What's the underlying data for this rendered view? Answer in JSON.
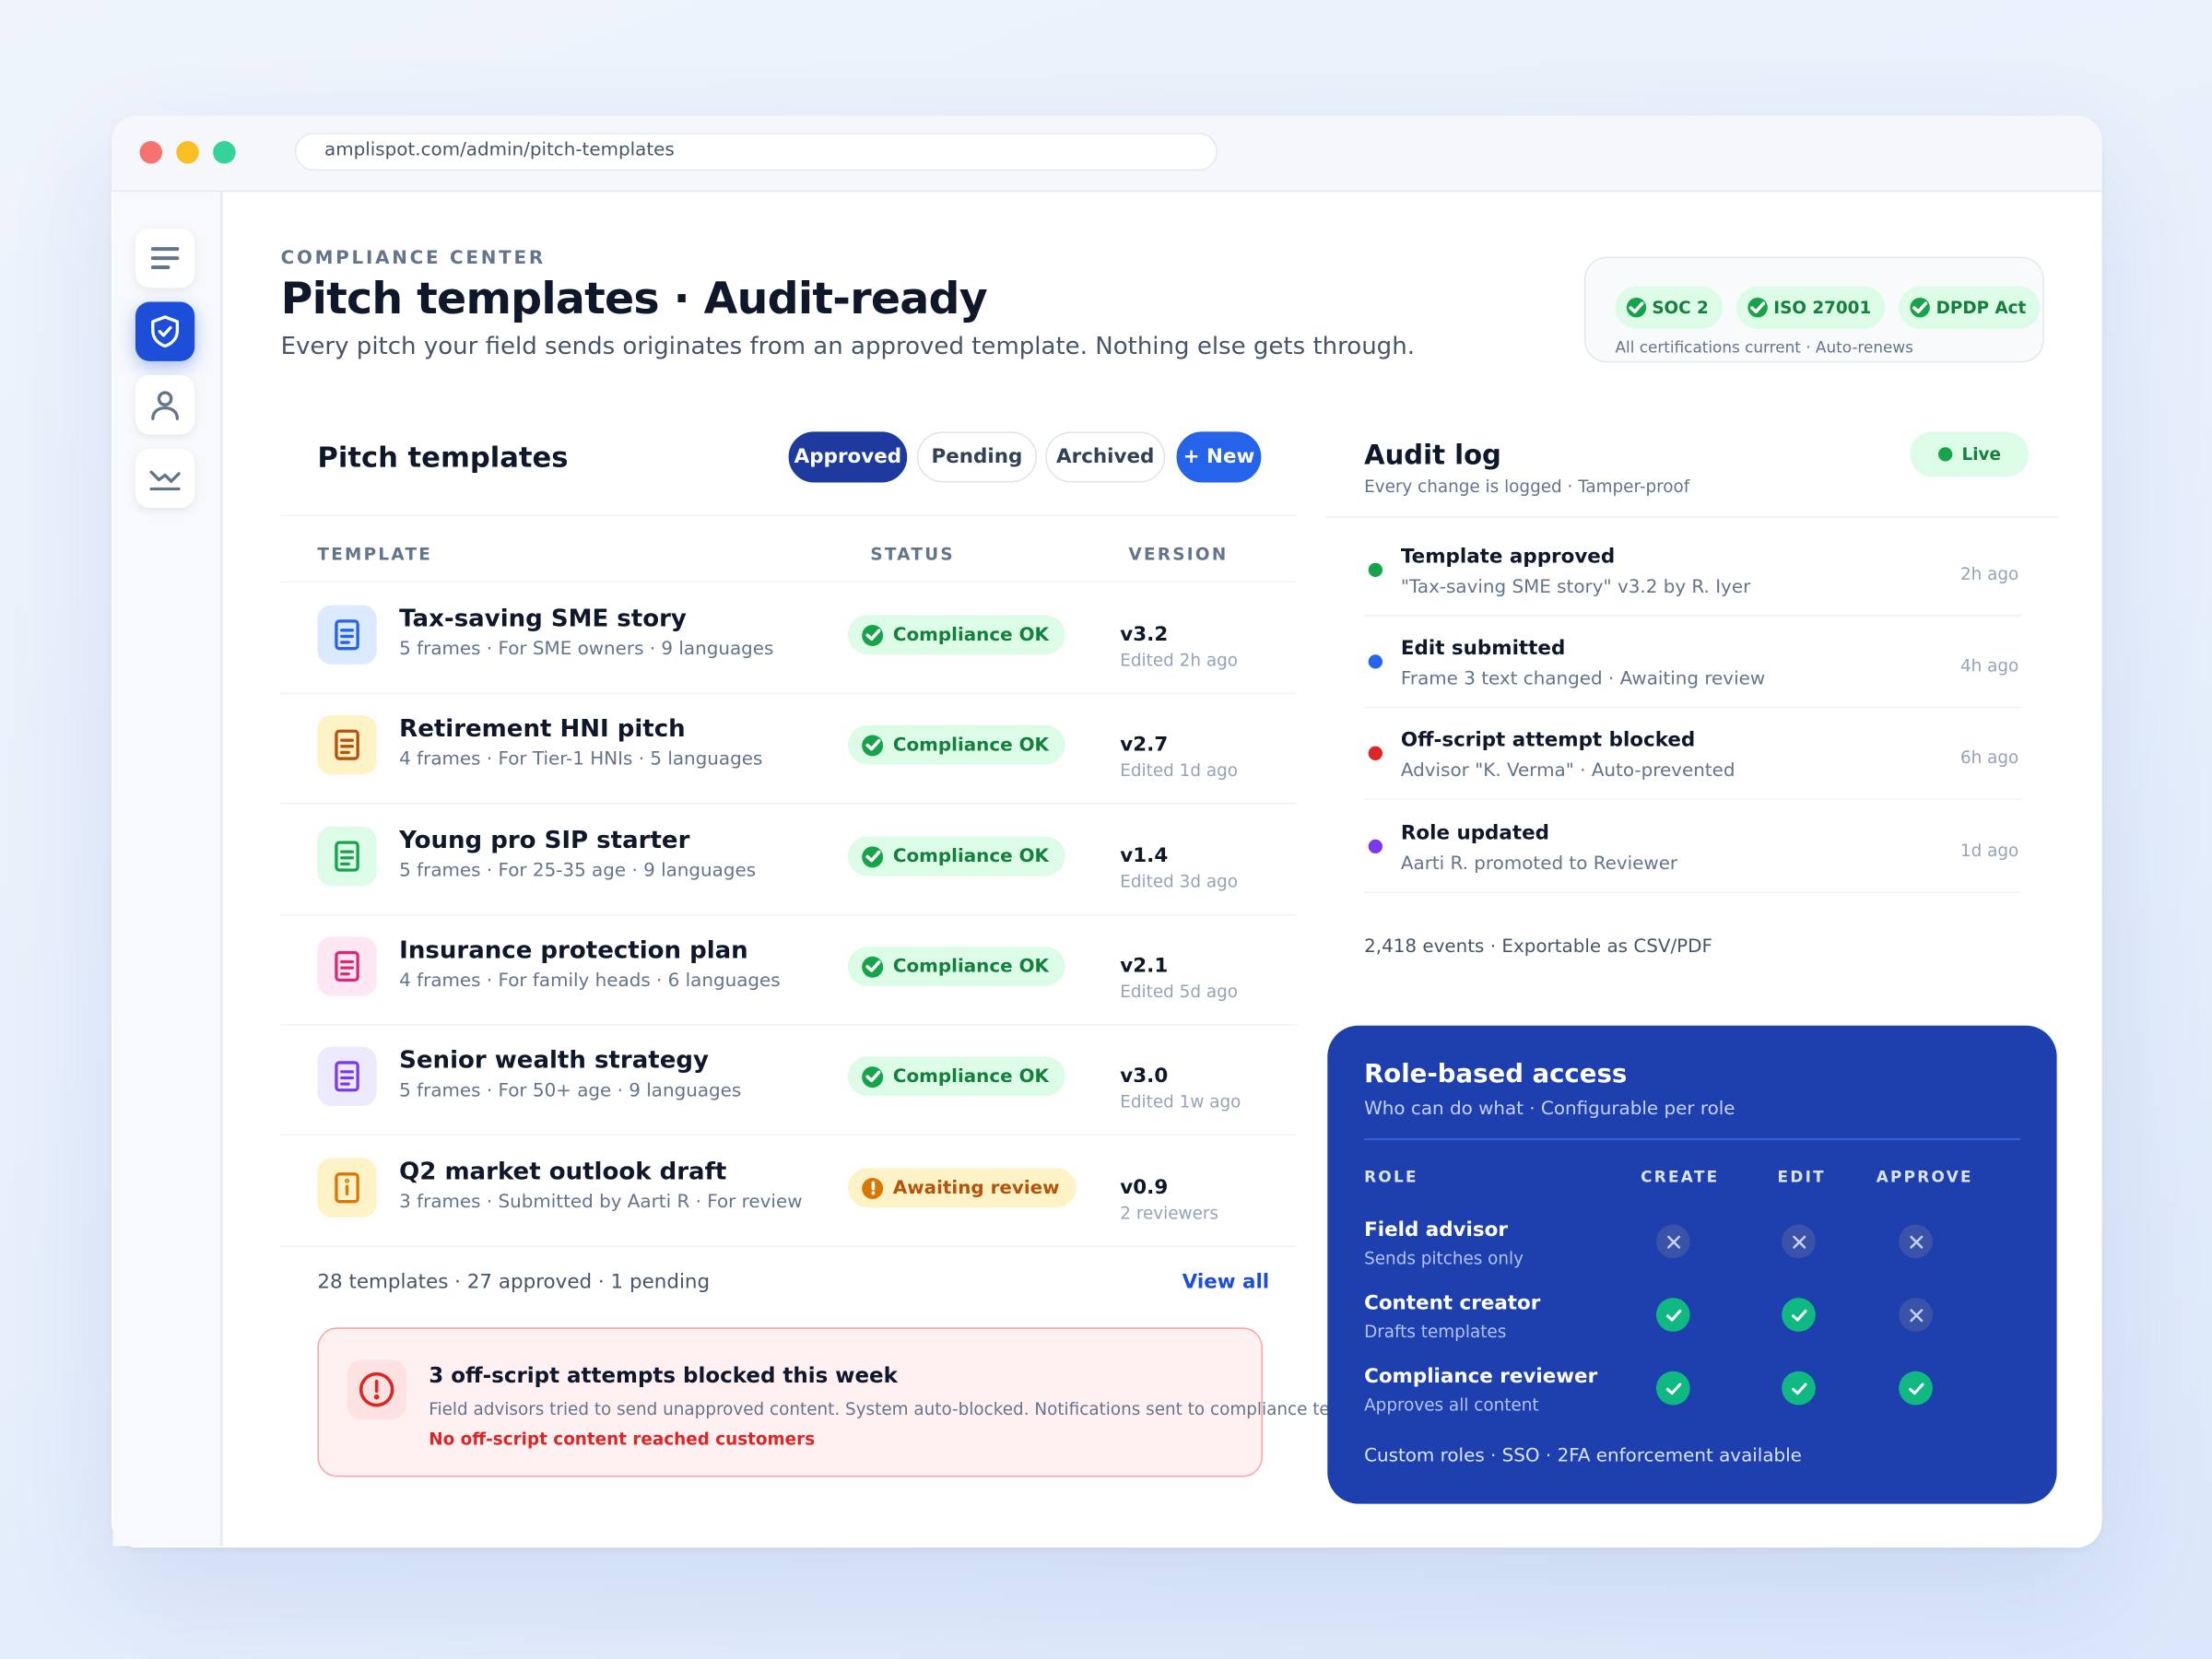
{
  "browser": {
    "url": "amplispot.com/admin/pitch-templates"
  },
  "rail": {
    "items": [
      "menu-icon",
      "shield-icon",
      "user-icon",
      "chart-icon"
    ],
    "active": "shield-icon"
  },
  "header": {
    "eyebrow": "COMPLIANCE CENTER",
    "title": "Pitch templates · Audit-ready",
    "subtitle": "Every pitch your field sends originates from an approved template. Nothing else gets through."
  },
  "certifications": {
    "chips": [
      "SOC 2",
      "ISO 27001",
      "DPDP Act"
    ],
    "note": "All certifications current · Auto-renews"
  },
  "templates": {
    "title": "Pitch templates",
    "tabs": {
      "approved": "Approved",
      "pending": "Pending",
      "archived": "Archived",
      "new": "+ New"
    },
    "columns": {
      "template": "TEMPLATE",
      "status": "STATUS",
      "version": "VERSION"
    },
    "rows": [
      {
        "name": "Tax-saving SME story",
        "meta": "5 frames · For SME owners · 9 languages",
        "status": "Compliance OK",
        "version": "v3.2",
        "version_sub": "Edited 2h ago",
        "icon": "document-icon",
        "color": "#2563eb"
      },
      {
        "name": "Retirement HNI pitch",
        "meta": "4 frames · For Tier-1 HNIs · 5 languages",
        "status": "Compliance OK",
        "version": "v2.7",
        "version_sub": "Edited 1d ago",
        "icon": "document-icon",
        "color": "#b45309"
      },
      {
        "name": "Young pro SIP starter",
        "meta": "5 frames · For 25-35 age · 9 languages",
        "status": "Compliance OK",
        "version": "v1.4",
        "version_sub": "Edited 3d ago",
        "icon": "document-icon",
        "color": "#16a34a"
      },
      {
        "name": "Insurance protection plan",
        "meta": "4 frames · For family heads · 6 languages",
        "status": "Compliance OK",
        "version": "v2.1",
        "version_sub": "Edited 5d ago",
        "icon": "document-icon",
        "color": "#db2777"
      },
      {
        "name": "Senior wealth strategy",
        "meta": "5 frames · For 50+ age · 9 languages",
        "status": "Compliance OK",
        "version": "v3.0",
        "version_sub": "Edited 1w ago",
        "icon": "document-icon",
        "color": "#7c3aed"
      },
      {
        "name": "Q2 market outlook draft",
        "meta": "3 frames · Submitted by Aarti R · For review",
        "status": "Awaiting review",
        "version": "v0.9",
        "version_sub": "2 reviewers",
        "icon": "info-icon",
        "color": "#d97706"
      }
    ],
    "footer": "28 templates · 27 approved · 1 pending",
    "view_all": "View all"
  },
  "alert": {
    "title": "3 off-script attempts blocked this week",
    "body": "Field advisors tried to send unapproved content. System auto-blocked. Notifications sent to compliance te",
    "strong": "No off-script content reached customers"
  },
  "audit": {
    "title": "Audit log",
    "subtitle": "Every change is logged · Tamper-proof",
    "live": "Live",
    "entries": [
      {
        "title": "Template approved",
        "desc": "\"Tax-saving SME story\" v3.2 by R. Iyer",
        "time": "2h ago",
        "color": "#16a34a"
      },
      {
        "title": "Edit submitted",
        "desc": "Frame 3 text changed · Awaiting review",
        "time": "4h ago",
        "color": "#2563eb"
      },
      {
        "title": "Off-script attempt blocked",
        "desc": "Advisor \"K. Verma\" · Auto-prevented",
        "time": "6h ago",
        "color": "#dc2626"
      },
      {
        "title": "Role updated",
        "desc": "Aarti R. promoted to Reviewer",
        "time": "1d ago",
        "color": "#7c3aed"
      }
    ],
    "footer": "2,418 events · Exportable as CSV/PDF"
  },
  "rbac": {
    "title": "Role-based access",
    "subtitle": "Who can do what · Configurable per role",
    "columns": {
      "role": "ROLE",
      "create": "CREATE",
      "edit": "EDIT",
      "approve": "APPROVE"
    },
    "roles": [
      {
        "name": "Field advisor",
        "desc": "Sends pitches only",
        "create": false,
        "edit": false,
        "approve": false
      },
      {
        "name": "Content creator",
        "desc": "Drafts templates",
        "create": true,
        "edit": true,
        "approve": false
      },
      {
        "name": "Compliance reviewer",
        "desc": "Approves all content",
        "create": true,
        "edit": true,
        "approve": true
      }
    ],
    "footer": "Custom roles · SSO · 2FA enforcement available"
  }
}
